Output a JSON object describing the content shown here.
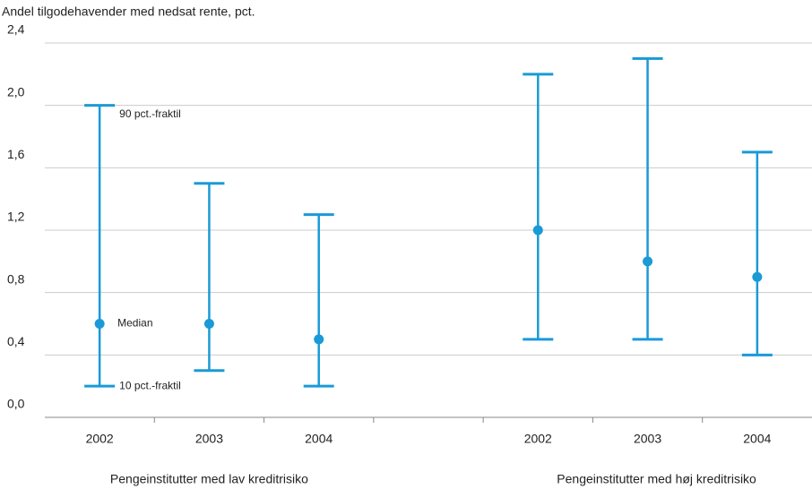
{
  "chart_data": {
    "type": "range",
    "title": "Andel tilgodehavender med nedsat rente, pct.",
    "categories": [
      "2002",
      "2003",
      "2004",
      null,
      "2002",
      "2003",
      "2004"
    ],
    "group_labels": [
      "Pengeinstitutter med lav kreditrisiko",
      "Pengeinstitutter med høj kreditrisiko"
    ],
    "color": "#1a9ad6",
    "series": [
      {
        "name": "Median",
        "values": [
          0.6,
          0.6,
          0.5,
          null,
          1.2,
          1.0,
          0.9
        ]
      },
      {
        "name": "10 pct.-fraktil",
        "values": [
          0.2,
          0.3,
          0.2,
          null,
          0.5,
          0.5,
          0.4
        ]
      },
      {
        "name": "90 pct.-fraktil",
        "values": [
          2.0,
          1.5,
          1.3,
          null,
          2.2,
          2.3,
          1.7
        ]
      }
    ],
    "ylim": [
      0,
      2.4
    ],
    "yticks": [
      {
        "value": 0,
        "label": "0,0"
      },
      {
        "value": 0.4,
        "label": "0,4"
      },
      {
        "value": 0.8,
        "label": "0,8"
      },
      {
        "value": 1.2,
        "label": "1,2"
      },
      {
        "value": 1.6,
        "label": "1,6"
      },
      {
        "value": 2.0,
        "label": "2,0"
      },
      {
        "value": 2.4,
        "label": "2,4"
      }
    ],
    "grid": true
  }
}
